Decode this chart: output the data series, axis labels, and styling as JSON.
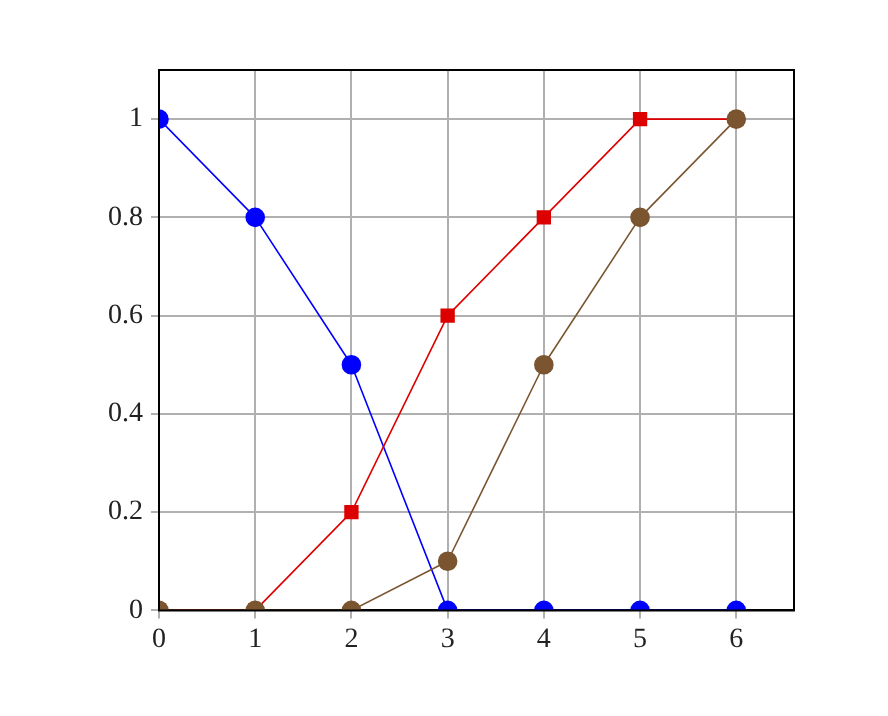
{
  "chart_data": {
    "type": "line",
    "x": [
      0,
      1,
      2,
      3,
      4,
      5,
      6
    ],
    "series": [
      {
        "color": "#0000ff",
        "marker": "circle",
        "values": [
          1,
          0.8,
          0.5,
          0,
          0,
          0,
          0
        ]
      },
      {
        "color": "#dd0000",
        "marker": "square",
        "values": [
          0,
          0,
          0.2,
          0.6,
          0.8,
          1,
          1
        ]
      },
      {
        "color": "#7a5530",
        "marker": "circle",
        "values": [
          0,
          0,
          0,
          0.1,
          0.5,
          0.8,
          1
        ]
      }
    ],
    "xlim": [
      0,
      6.6
    ],
    "xticks": [
      0,
      1,
      2,
      3,
      4,
      5,
      6
    ],
    "ylim": [
      0,
      1.1
    ],
    "yticks": [
      0,
      0.2,
      0.4,
      0.6,
      0.8,
      1
    ],
    "grid": true,
    "legend": false,
    "line_style": "solid"
  }
}
